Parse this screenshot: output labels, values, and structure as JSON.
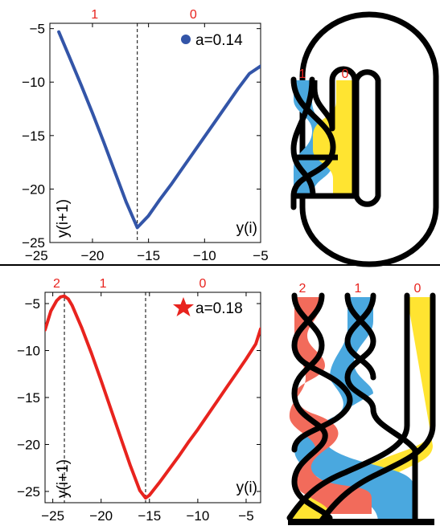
{
  "colors": {
    "series_top": "#3355a8",
    "series_bottom": "#e8231e",
    "region_label": "#e8231e",
    "braid_red": "#f26b5b",
    "braid_blue": "#4aa8df",
    "braid_yellow": "#ffe431",
    "outline": "#000000"
  },
  "chart_data": [
    {
      "type": "line",
      "xlabel": "y(i)",
      "ylabel": "y(i+1)",
      "xlim": [
        -23.8,
        -5
      ],
      "ylim": [
        -25,
        -4.5
      ],
      "x_ticks": [
        -25,
        -20,
        -15,
        -10,
        -5
      ],
      "y_ticks": [
        -25,
        -20,
        -15,
        -10,
        -5
      ],
      "x_tick_labels": [
        "−25",
        "−20",
        "−15",
        "−10",
        "−5"
      ],
      "y_tick_labels": [
        "−25",
        "−20",
        "−15",
        "−10",
        "−5"
      ],
      "legend": {
        "marker": "circle",
        "label": "a=0.14",
        "position": "top-right"
      },
      "critical_x": [
        -16.0
      ],
      "region_labels": [
        {
          "label": "1",
          "x": -19.8
        },
        {
          "label": "0",
          "x": -11.0
        }
      ],
      "series": [
        {
          "x": [
            -23,
            -22,
            -21,
            -20,
            -19,
            -18,
            -17,
            -16,
            -15,
            -14,
            -13,
            -12,
            -11,
            -10,
            -9,
            -8,
            -7,
            -6,
            -5
          ],
          "y": [
            -5.3,
            -7.8,
            -10.3,
            -12.9,
            -15.6,
            -18.4,
            -21.2,
            -23.6,
            -22.5,
            -21.0,
            -19.6,
            -18.1,
            -16.6,
            -15.1,
            -13.6,
            -12.1,
            -10.6,
            -9.2,
            -8.5
          ]
        }
      ]
    },
    {
      "type": "line",
      "xlabel": "y(i)",
      "ylabel": "y(i+1)",
      "xlim": [
        -25.8,
        -3.5
      ],
      "ylim": [
        -26.2,
        -3.8
      ],
      "x_ticks": [
        -25,
        -20,
        -15,
        -10,
        -5
      ],
      "y_ticks": [
        -25,
        -20,
        -15,
        -10,
        -5
      ],
      "x_tick_labels": [
        "−25",
        "−20",
        "−15",
        "−10",
        "−5"
      ],
      "y_tick_labels": [
        "−25",
        "−20",
        "−15",
        "−10",
        "−5"
      ],
      "legend": {
        "marker": "star",
        "label": "a=0.18",
        "position": "top-right"
      },
      "critical_x": [
        -23.8,
        -15.4
      ],
      "region_labels": [
        {
          "label": "2",
          "x": -24.6
        },
        {
          "label": "1",
          "x": -19.8
        },
        {
          "label": "0",
          "x": -9.5
        }
      ],
      "series": [
        {
          "x": [
            -25.8,
            -25.2,
            -24.6,
            -24.2,
            -23.8,
            -23.4,
            -23.0,
            -22.0,
            -21.0,
            -20.0,
            -19.0,
            -18.0,
            -17.0,
            -16.0,
            -15.4,
            -15.0,
            -14.0,
            -13.0,
            -12.0,
            -11.0,
            -10.0,
            -9.0,
            -8.0,
            -7.0,
            -6.0,
            -5.0,
            -4.0,
            -3.5
          ],
          "y": [
            -7.8,
            -5.8,
            -4.7,
            -4.3,
            -4.2,
            -4.5,
            -5.2,
            -7.6,
            -10.3,
            -13.2,
            -16.2,
            -19.2,
            -22.2,
            -24.9,
            -25.7,
            -25.4,
            -24.1,
            -22.7,
            -21.3,
            -19.8,
            -18.4,
            -16.9,
            -15.4,
            -13.9,
            -12.4,
            -10.9,
            -9.3,
            -7.7
          ]
        }
      ]
    }
  ],
  "braids": {
    "top": {
      "strand_labels": [
        "1",
        "0"
      ]
    },
    "bottom": {
      "strand_labels": [
        "2",
        "1",
        "0"
      ]
    }
  }
}
